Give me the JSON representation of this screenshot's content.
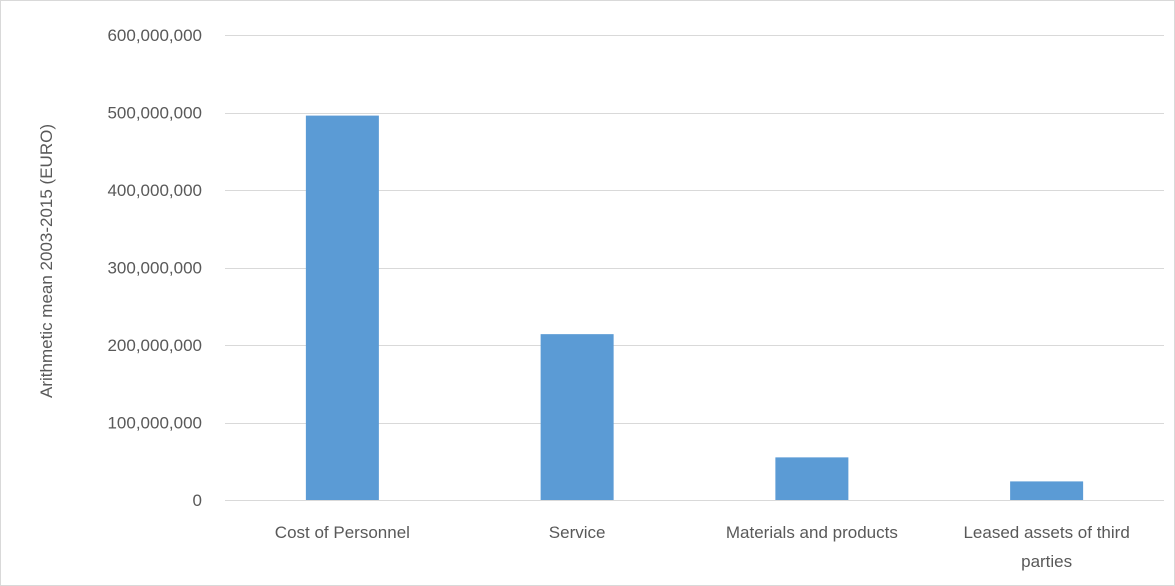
{
  "chart_data": {
    "type": "bar",
    "title": "",
    "xlabel": "",
    "ylabel": "Arithmetic mean 2003-2015 (EURO)",
    "categories": [
      [
        "Cost of Personnel"
      ],
      [
        "Service"
      ],
      [
        "Materials and products"
      ],
      [
        "Leased assets of third",
        "parties"
      ]
    ],
    "values": [
      496000000,
      214000000,
      55000000,
      24000000
    ],
    "ylim": [
      0,
      600000000
    ],
    "yticks": [
      0,
      100000000,
      200000000,
      300000000,
      400000000,
      500000000,
      600000000
    ],
    "ytick_labels": [
      "0",
      "100,000,000",
      "200,000,000",
      "300,000,000",
      "400,000,000",
      "500,000,000",
      "600,000,000"
    ],
    "grid": true,
    "legend": "none",
    "colors": {
      "bar": "#5b9bd5",
      "grid": "#d9d9d9",
      "text": "#595959",
      "border": "#d9d9d9"
    }
  }
}
